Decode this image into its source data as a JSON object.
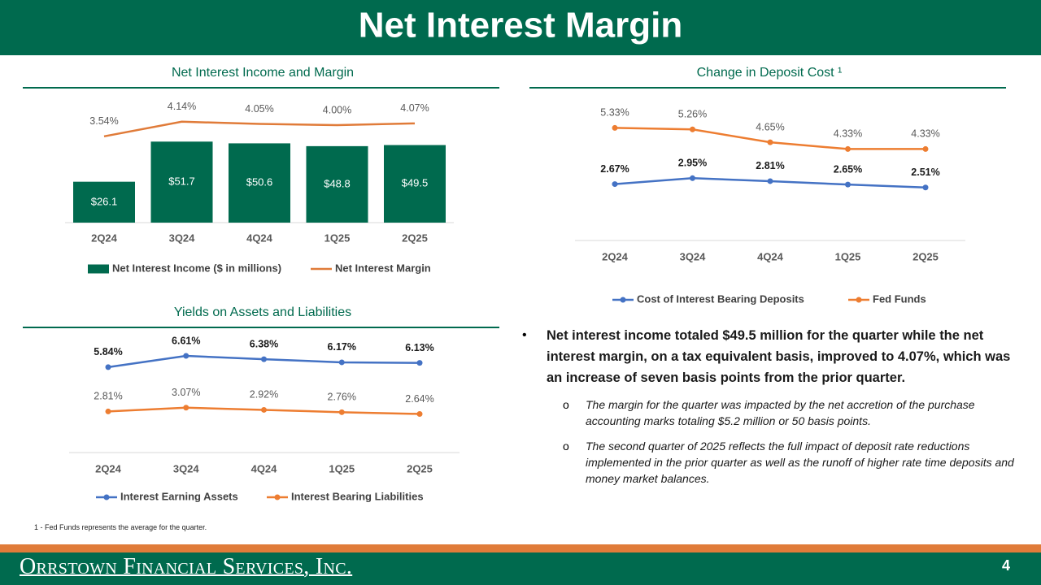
{
  "header": {
    "title": "Net Interest Margin"
  },
  "chart_data": [
    {
      "type": "bar",
      "title": "Net Interest Income and Margin",
      "categories": [
        "2Q24",
        "3Q24",
        "4Q24",
        "1Q25",
        "2Q25"
      ],
      "series": [
        {
          "name": "Net Interest Income ($ in millions)",
          "type": "bar",
          "color": "#006a4e",
          "values": [
            26.1,
            51.7,
            50.6,
            48.8,
            49.5
          ],
          "value_labels": [
            "$26.1",
            "$51.7",
            "$50.6",
            "$48.8",
            "$49.5"
          ]
        },
        {
          "name": "Net Interest Margin",
          "type": "line",
          "axis": "y2",
          "color": "#e07b39",
          "values": [
            3.54,
            4.14,
            4.05,
            4.0,
            4.07
          ],
          "value_labels": [
            "3.54%",
            "4.14%",
            "4.05%",
            "4.00%",
            "4.07%"
          ]
        }
      ],
      "ylim": [
        0,
        70
      ],
      "y2lim": [
        0,
        4.5
      ],
      "markers": false
    },
    {
      "type": "line",
      "title": "Change in Deposit Cost ¹",
      "categories": [
        "2Q24",
        "3Q24",
        "4Q24",
        "1Q25",
        "2Q25"
      ],
      "series": [
        {
          "name": "Cost of Interest Bearing Deposits",
          "color": "#4472c4",
          "values": [
            2.67,
            2.95,
            2.81,
            2.65,
            2.51
          ],
          "value_labels": [
            "2.67%",
            "2.95%",
            "2.81%",
            "2.65%",
            "2.51%"
          ]
        },
        {
          "name": "Fed Funds",
          "color": "#ed7d31",
          "values": [
            5.33,
            5.26,
            4.65,
            4.33,
            4.33
          ],
          "value_labels": [
            "5.33%",
            "5.26%",
            "4.65%",
            "4.33%",
            "4.33%"
          ]
        }
      ],
      "ylim": [
        0,
        6.5
      ],
      "markers": true
    },
    {
      "type": "line",
      "title": "Yields on Assets and Liabilities",
      "categories": [
        "2Q24",
        "3Q24",
        "4Q24",
        "1Q25",
        "2Q25"
      ],
      "series": [
        {
          "name": "Interest Earning Assets",
          "color": "#4472c4",
          "values": [
            5.84,
            6.61,
            6.38,
            6.17,
            6.13
          ],
          "value_labels": [
            "5.84%",
            "6.61%",
            "6.38%",
            "6.17%",
            "6.13%"
          ]
        },
        {
          "name": "Interest Bearing Liabilities",
          "color": "#ed7d31",
          "values": [
            2.81,
            3.07,
            2.92,
            2.76,
            2.64
          ],
          "value_labels": [
            "2.81%",
            "3.07%",
            "2.92%",
            "2.76%",
            "2.64%"
          ]
        }
      ],
      "ylim": [
        0,
        7.5
      ],
      "markers": true
    }
  ],
  "bullets": {
    "main": "Net interest income totaled $49.5 million for the quarter while the net interest margin, on a tax equivalent basis, improved to 4.07%, which was an increase of seven basis points from the prior quarter.",
    "sub": [
      "The margin for the quarter was impacted by the net accretion of the purchase accounting marks totaling $5.2 million or 50 basis points.",
      "The second quarter of 2025 reflects the full impact of deposit rate reductions implemented in the prior quarter as well as the runoff of higher rate time deposits and money market balances."
    ]
  },
  "footnote": "1 - Fed Funds represents the average for the quarter.",
  "footer": {
    "company": "Orrstown Financial Services, Inc.",
    "page": 4
  }
}
